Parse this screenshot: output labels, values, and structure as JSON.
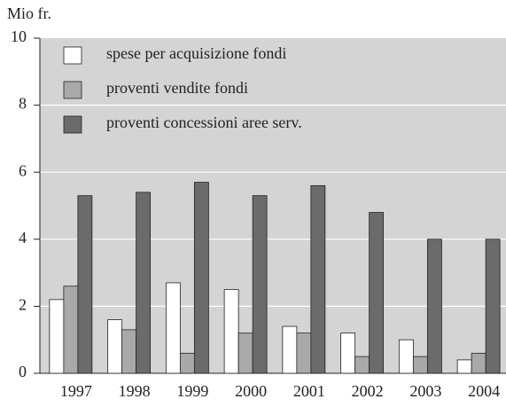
{
  "chart_data": {
    "type": "bar",
    "y_label": "Mio fr.",
    "categories": [
      "1997",
      "1998",
      "1999",
      "2000",
      "2001",
      "2002",
      "2003",
      "2004"
    ],
    "series": [
      {
        "name": "spese per acquisizione fondi",
        "color": "#ffffff",
        "values": [
          2.2,
          1.6,
          2.7,
          2.5,
          1.4,
          1.2,
          1.0,
          0.4
        ]
      },
      {
        "name": "proventi vendite fondi",
        "color": "#a9a9a9",
        "values": [
          2.6,
          1.3,
          0.6,
          1.2,
          1.2,
          0.5,
          0.5,
          0.6
        ]
      },
      {
        "name": "proventi concessioni aree serv.",
        "color": "#6b6b6b",
        "values": [
          5.3,
          5.4,
          5.7,
          5.3,
          5.6,
          4.8,
          4.0,
          4.0
        ]
      }
    ],
    "ylim": [
      0,
      10
    ],
    "yticks": [
      0,
      2,
      4,
      6,
      8,
      10
    ],
    "grid": true,
    "legend": "top-left"
  }
}
